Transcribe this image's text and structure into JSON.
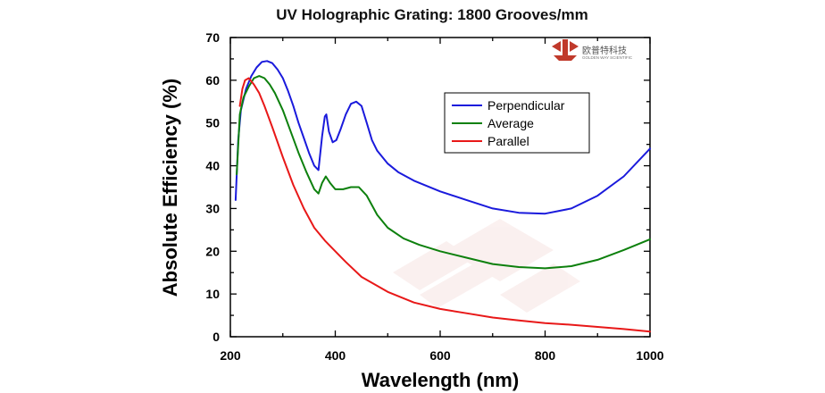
{
  "chart_data": {
    "type": "line",
    "title": "UV Holographic Grating: 1800 Grooves/mm",
    "xlabel": "Wavelength (nm)",
    "ylabel": "Absolute Efficiency (%)",
    "xlim": [
      200,
      1000
    ],
    "ylim": [
      0,
      70
    ],
    "xticks": [
      200,
      400,
      600,
      800,
      1000
    ],
    "yticks": [
      0,
      10,
      20,
      30,
      40,
      50,
      60,
      70
    ],
    "grid": false,
    "legend_position": "upper-right",
    "series": [
      {
        "name": "Perpendicular",
        "color": "#1a1adc",
        "points": [
          [
            210,
            32
          ],
          [
            215,
            46
          ],
          [
            220,
            53
          ],
          [
            230,
            58
          ],
          [
            240,
            61
          ],
          [
            250,
            63
          ],
          [
            260,
            64.3
          ],
          [
            270,
            64.5
          ],
          [
            280,
            64
          ],
          [
            290,
            62.5
          ],
          [
            300,
            60.5
          ],
          [
            310,
            57.5
          ],
          [
            320,
            54
          ],
          [
            330,
            50
          ],
          [
            340,
            46.5
          ],
          [
            350,
            43
          ],
          [
            360,
            40
          ],
          [
            368,
            39
          ],
          [
            375,
            47
          ],
          [
            380,
            51.5
          ],
          [
            383,
            52
          ],
          [
            388,
            48
          ],
          [
            395,
            45.5
          ],
          [
            402,
            46
          ],
          [
            410,
            48.5
          ],
          [
            420,
            52
          ],
          [
            430,
            54.5
          ],
          [
            440,
            55
          ],
          [
            450,
            54
          ],
          [
            460,
            50
          ],
          [
            470,
            46
          ],
          [
            480,
            43.5
          ],
          [
            500,
            40.5
          ],
          [
            520,
            38.5
          ],
          [
            550,
            36.5
          ],
          [
            600,
            34
          ],
          [
            650,
            32
          ],
          [
            700,
            30
          ],
          [
            750,
            29
          ],
          [
            800,
            28.8
          ],
          [
            850,
            30
          ],
          [
            900,
            33
          ],
          [
            950,
            37.5
          ],
          [
            1000,
            44
          ]
        ]
      },
      {
        "name": "Average",
        "color": "#0d800d",
        "points": [
          [
            212,
            38
          ],
          [
            218,
            52
          ],
          [
            225,
            56
          ],
          [
            235,
            58.5
          ],
          [
            245,
            60.5
          ],
          [
            255,
            61
          ],
          [
            265,
            60.5
          ],
          [
            275,
            59
          ],
          [
            285,
            57
          ],
          [
            300,
            53
          ],
          [
            315,
            48
          ],
          [
            330,
            43
          ],
          [
            345,
            38.5
          ],
          [
            360,
            34.5
          ],
          [
            368,
            33.5
          ],
          [
            375,
            36
          ],
          [
            382,
            37.5
          ],
          [
            390,
            36
          ],
          [
            400,
            34.5
          ],
          [
            415,
            34.5
          ],
          [
            430,
            35
          ],
          [
            445,
            35
          ],
          [
            460,
            33
          ],
          [
            480,
            28.5
          ],
          [
            500,
            25.5
          ],
          [
            530,
            23
          ],
          [
            560,
            21.5
          ],
          [
            600,
            20
          ],
          [
            650,
            18.5
          ],
          [
            700,
            17
          ],
          [
            750,
            16.3
          ],
          [
            800,
            16
          ],
          [
            850,
            16.5
          ],
          [
            900,
            18
          ],
          [
            950,
            20.3
          ],
          [
            1000,
            22.8
          ]
        ]
      },
      {
        "name": "Parallel",
        "color": "#e81818",
        "points": [
          [
            218,
            54
          ],
          [
            223,
            58
          ],
          [
            228,
            60
          ],
          [
            235,
            60.5
          ],
          [
            245,
            59
          ],
          [
            255,
            57
          ],
          [
            265,
            54
          ],
          [
            280,
            49
          ],
          [
            300,
            42
          ],
          [
            320,
            35.5
          ],
          [
            340,
            30
          ],
          [
            360,
            25.5
          ],
          [
            380,
            22.5
          ],
          [
            400,
            20
          ],
          [
            420,
            17.5
          ],
          [
            450,
            14
          ],
          [
            500,
            10.5
          ],
          [
            550,
            8
          ],
          [
            600,
            6.5
          ],
          [
            650,
            5.5
          ],
          [
            700,
            4.5
          ],
          [
            750,
            3.8
          ],
          [
            800,
            3.2
          ],
          [
            850,
            2.8
          ],
          [
            900,
            2.3
          ],
          [
            950,
            1.8
          ],
          [
            1000,
            1.2
          ]
        ]
      }
    ]
  },
  "logo": {
    "text_cn": "欧普特科技",
    "text_en": "GOLDEN WAY SCIENTIFIC",
    "color": "#c0392b"
  }
}
